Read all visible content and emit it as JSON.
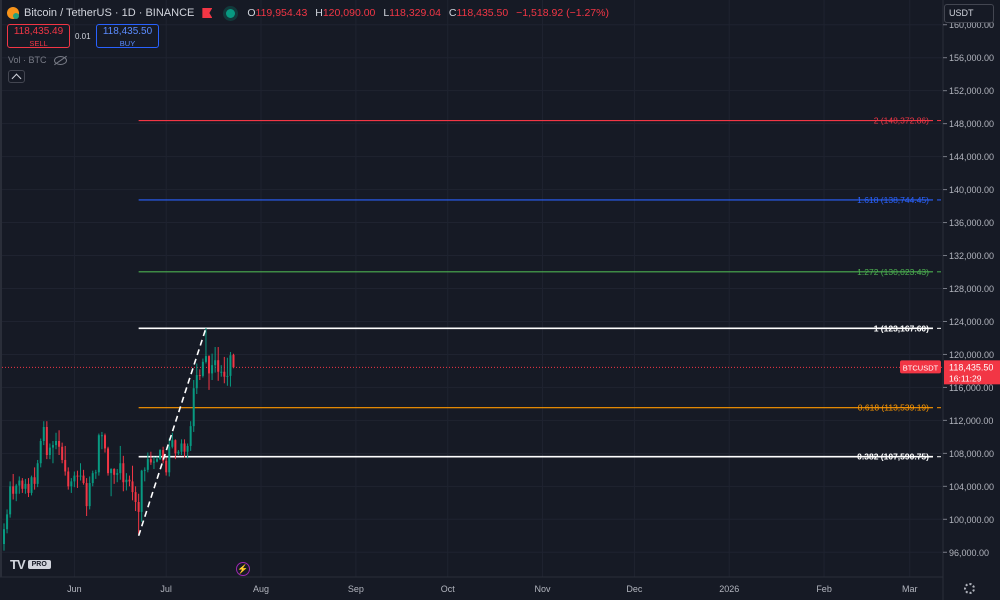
{
  "header": {
    "symbol": "Bitcoin / TetherUS · 1D · BINANCE",
    "ohlc": [
      {
        "k": "O",
        "v": "119,954.43"
      },
      {
        "k": "H",
        "v": "120,090.00"
      },
      {
        "k": "L",
        "v": "118,329.04"
      },
      {
        "k": "C",
        "v": "118,435.50"
      }
    ],
    "change": "−1,518.92 (−1.27%)",
    "icons": [
      "bitcoin-icon",
      "flag-icon",
      "market-status-icon"
    ]
  },
  "trade": {
    "sell_price": "118,435.49",
    "sell_label": "SELL",
    "spread": "0.01",
    "buy_price": "118,435.50",
    "buy_label": "BUY"
  },
  "volume_label": "Vol · BTC",
  "currency": "USDT",
  "branding": {
    "logo": "TV",
    "badge": "PRO"
  },
  "colors": {
    "background": "#161a25",
    "grid": "#1f2330",
    "up": "#089981",
    "down": "#f23645",
    "fib_2": "#f23645",
    "fib_1618": "#2962ff",
    "fib_1272": "#4caf50",
    "fib_1": "#ffffff",
    "fib_0618": "#ff9800",
    "fib_0382": "#ffffff",
    "current_price": "#f23645"
  },
  "chart_data": {
    "type": "candlestick",
    "symbol": "BTCUSDT",
    "x_ticks": [
      "Jun",
      "Jul",
      "Aug",
      "Sep",
      "Oct",
      "Nov",
      "Dec",
      "2026",
      "Feb",
      "Mar"
    ],
    "y_ticks": [
      "96,000.00",
      "100,000.00",
      "104,000.00",
      "108,000.00",
      "112,000.00",
      "116,000.00",
      "120,000.00",
      "124,000.00",
      "128,000.00",
      "132,000.00",
      "136,000.00",
      "140,000.00",
      "144,000.00",
      "148,000.00",
      "152,000.00",
      "156,000.00",
      "160,000.00"
    ],
    "ylim": [
      93000,
      163000
    ],
    "current_price": {
      "label": "BTCUSDT",
      "value": 118435.5,
      "value_text": "118,435.50",
      "countdown": "16:11:29"
    },
    "fib_levels": [
      {
        "level": "2",
        "value": 148372.86,
        "label": "2 (148,372.86)",
        "color": "#f23645",
        "bold": false
      },
      {
        "level": "1.618",
        "value": 138744.45,
        "label": "1.618 (138,744.45)",
        "color": "#2962ff",
        "bold": false
      },
      {
        "level": "1.272",
        "value": 130023.43,
        "label": "1.272 (130,023.43)",
        "color": "#4caf50",
        "bold": false
      },
      {
        "level": "1",
        "value": 123167.6,
        "label": "1 (123,167.60)",
        "color": "#ffffff",
        "bold": true
      },
      {
        "level": "0.618",
        "value": 113539.19,
        "label": "0.618 (113,539.19)",
        "color": "#ff9800",
        "bold": false
      },
      {
        "level": "0.382",
        "value": 107590.75,
        "label": "0.382 (107,590.75)",
        "color": "#ffffff",
        "bold": true
      }
    ],
    "fib_start_date": "2025-06-22",
    "trend_line": [
      {
        "date": "2025-06-22",
        "value": 98000
      },
      {
        "date": "2025-07-14",
        "value": 123200
      }
    ],
    "candles": [
      [
        "2025-05-09",
        97000,
        99500,
        96200,
        98800
      ],
      [
        "2025-05-10",
        98800,
        101200,
        98300,
        100600
      ],
      [
        "2025-05-11",
        100600,
        104600,
        100200,
        104000
      ],
      [
        "2025-05-12",
        104000,
        105500,
        102400,
        103100
      ],
      [
        "2025-05-13",
        103100,
        104300,
        102200,
        104100
      ],
      [
        "2025-05-14",
        104100,
        105200,
        103100,
        104700
      ],
      [
        "2025-05-15",
        104700,
        105000,
        103200,
        103700
      ],
      [
        "2025-05-16",
        103700,
        104900,
        103100,
        104300
      ],
      [
        "2025-05-17",
        104300,
        105000,
        102700,
        103200
      ],
      [
        "2025-05-18",
        103200,
        105300,
        102900,
        105100
      ],
      [
        "2025-05-19",
        105100,
        106300,
        103600,
        104300
      ],
      [
        "2025-05-20",
        104300,
        107200,
        103900,
        106800
      ],
      [
        "2025-05-21",
        106800,
        109800,
        106300,
        109500
      ],
      [
        "2025-05-22",
        109500,
        111900,
        109000,
        111200
      ],
      [
        "2025-05-23",
        111200,
        111900,
        107300,
        107800
      ],
      [
        "2025-05-24",
        107800,
        109200,
        107300,
        108700
      ],
      [
        "2025-05-25",
        108700,
        109500,
        106800,
        109000
      ],
      [
        "2025-05-26",
        109000,
        110500,
        108500,
        109500
      ],
      [
        "2025-05-27",
        109500,
        110800,
        107800,
        108800
      ],
      [
        "2025-05-28",
        108800,
        109300,
        106800,
        107200
      ],
      [
        "2025-05-29",
        107200,
        108900,
        105300,
        105800
      ],
      [
        "2025-05-30",
        105800,
        106300,
        103600,
        104000
      ],
      [
        "2025-05-31",
        104000,
        105000,
        103200,
        104600
      ],
      [
        "2025-06-01",
        104600,
        105800,
        103900,
        105300
      ],
      [
        "2025-06-02",
        105300,
        105900,
        103800,
        105200
      ],
      [
        "2025-06-03",
        105200,
        106800,
        104700,
        105300
      ],
      [
        "2025-06-04",
        105300,
        106000,
        104200,
        104400
      ],
      [
        "2025-06-05",
        104400,
        105000,
        100400,
        101600
      ],
      [
        "2025-06-06",
        101600,
        105200,
        101200,
        104400
      ],
      [
        "2025-06-07",
        104400,
        105900,
        104000,
        105600
      ],
      [
        "2025-06-08",
        105600,
        106000,
        104900,
        105700
      ],
      [
        "2025-06-09",
        105700,
        110400,
        105300,
        110200
      ],
      [
        "2025-06-10",
        110200,
        110600,
        108500,
        110200
      ],
      [
        "2025-06-11",
        110200,
        110400,
        108100,
        108600
      ],
      [
        "2025-06-12",
        108600,
        108800,
        105300,
        105600
      ],
      [
        "2025-06-13",
        105600,
        106200,
        102800,
        106100
      ],
      [
        "2025-06-14",
        106100,
        106200,
        104300,
        105400
      ],
      [
        "2025-06-15",
        105400,
        106100,
        104500,
        105600
      ],
      [
        "2025-06-16",
        105600,
        108900,
        104800,
        106800
      ],
      [
        "2025-06-17",
        106800,
        107700,
        103400,
        104500
      ],
      [
        "2025-06-18",
        104500,
        105600,
        103500,
        104800
      ],
      [
        "2025-06-19",
        104800,
        105300,
        104000,
        104600
      ],
      [
        "2025-06-20",
        104600,
        106500,
        102300,
        103300
      ],
      [
        "2025-06-21",
        103300,
        104000,
        101000,
        102100
      ],
      [
        "2025-06-22",
        102100,
        103100,
        98200,
        100900
      ],
      [
        "2025-06-23",
        100900,
        106000,
        99700,
        105900
      ],
      [
        "2025-06-24",
        105900,
        106300,
        104600,
        106000
      ],
      [
        "2025-06-25",
        106000,
        108100,
        105700,
        107300
      ],
      [
        "2025-06-26",
        107300,
        108200,
        106600,
        106900
      ],
      [
        "2025-06-27",
        106900,
        107600,
        106100,
        107000
      ],
      [
        "2025-06-28",
        107000,
        107600,
        106900,
        107300
      ],
      [
        "2025-06-29",
        107300,
        108500,
        107200,
        108400
      ],
      [
        "2025-06-30",
        108400,
        108800,
        106800,
        107100
      ],
      [
        "2025-07-01",
        107100,
        107500,
        105300,
        105700
      ],
      [
        "2025-07-02",
        105700,
        109800,
        105200,
        108800
      ],
      [
        "2025-07-03",
        108800,
        110500,
        108600,
        109600
      ],
      [
        "2025-07-04",
        109600,
        109700,
        107300,
        108000
      ],
      [
        "2025-07-05",
        108000,
        108400,
        107800,
        108200
      ],
      [
        "2025-07-06",
        108200,
        109700,
        107800,
        109200
      ],
      [
        "2025-07-07",
        109200,
        109700,
        107500,
        108200
      ],
      [
        "2025-07-08",
        108200,
        109200,
        107400,
        108900
      ],
      [
        "2025-07-09",
        108900,
        111900,
        108300,
        111300
      ],
      [
        "2025-07-10",
        111300,
        116900,
        110600,
        115900
      ],
      [
        "2025-07-11",
        115900,
        118900,
        115200,
        117500
      ],
      [
        "2025-07-12",
        117500,
        118200,
        116900,
        117400
      ],
      [
        "2025-07-13",
        117400,
        119500,
        117200,
        119100
      ],
      [
        "2025-07-14",
        119100,
        123200,
        118900,
        119800
      ],
      [
        "2025-07-15",
        119800,
        119900,
        115700,
        117700
      ],
      [
        "2025-07-16",
        117700,
        120100,
        116900,
        118700
      ],
      [
        "2025-07-17",
        118700,
        120900,
        117800,
        119300
      ],
      [
        "2025-07-18",
        119300,
        120900,
        116800,
        117900
      ],
      [
        "2025-07-19",
        117900,
        118700,
        117300,
        117900
      ],
      [
        "2025-07-20",
        117900,
        119700,
        116500,
        117300
      ],
      [
        "2025-07-21",
        117300,
        119600,
        116200,
        117400
      ],
      [
        "2025-07-22",
        117400,
        120300,
        116100,
        119900
      ],
      [
        "2025-07-23",
        119954.43,
        120090,
        118329.04,
        118435.5
      ]
    ]
  }
}
